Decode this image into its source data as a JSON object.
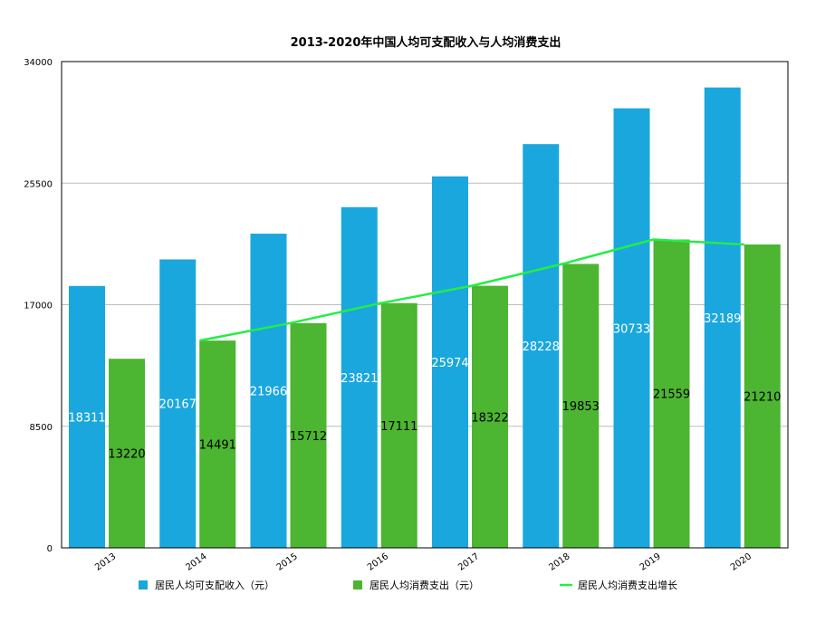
{
  "chart_data": {
    "type": "bar",
    "title": "2013-2020年中国人均可支配收入与人均消费支出",
    "categories": [
      "2013",
      "2014",
      "2015",
      "2016",
      "2017",
      "2018",
      "2019",
      "2020"
    ],
    "ylim": [
      0,
      34000
    ],
    "yticks": [
      "0",
      "8500",
      "17000",
      "25500",
      "34000"
    ],
    "series": [
      {
        "name": "居民人均可支配收入（元）",
        "type": "bar",
        "color": "#1aa7dd",
        "label_color": "#ffffff",
        "values": [
          18311,
          20167,
          21966,
          23821,
          25974,
          28228,
          30733,
          32189
        ]
      },
      {
        "name": "居民人均消费支出（元）",
        "type": "bar",
        "color": "#4cb531",
        "label_color": "#000000",
        "values": [
          13220,
          14491,
          15712,
          17111,
          18322,
          19853,
          21559,
          21210
        ]
      },
      {
        "name": "居民人均消费支出增长",
        "type": "line",
        "color": "#22ee44",
        "values": [
          null,
          14491,
          15712,
          17111,
          18322,
          19853,
          21559,
          21210
        ]
      }
    ],
    "grid": true,
    "legend_position": "bottom"
  }
}
